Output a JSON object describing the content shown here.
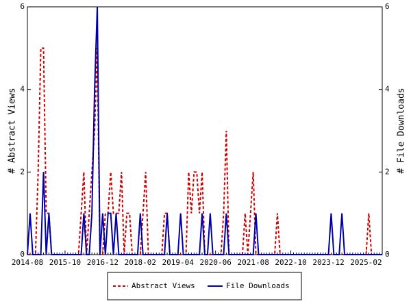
{
  "chart_data": {
    "type": "line",
    "categories": [
      "2014-08",
      null,
      null,
      null,
      null,
      null,
      null,
      null,
      null,
      null,
      null,
      null,
      null,
      null,
      "2015-10",
      null,
      null,
      null,
      null,
      null,
      null,
      null,
      null,
      null,
      null,
      null,
      null,
      null,
      "2016-12",
      null,
      null,
      null,
      null,
      null,
      null,
      null,
      null,
      null,
      null,
      null,
      null,
      null,
      "2018-02",
      null,
      null,
      null,
      null,
      null,
      null,
      null,
      null,
      null,
      null,
      null,
      null,
      null,
      "2019-04",
      null,
      null,
      null,
      null,
      null,
      null,
      null,
      null,
      null,
      null,
      null,
      null,
      null,
      "2020-06",
      null,
      null,
      null,
      null,
      null,
      null,
      null,
      null,
      null,
      null,
      null,
      null,
      null,
      "2021-08",
      null,
      null,
      null,
      null,
      null,
      null,
      null,
      null,
      null,
      null,
      null,
      null,
      null,
      "2022-10",
      null,
      null,
      null,
      null,
      null,
      null,
      null,
      null,
      null,
      null,
      null,
      null,
      null,
      "2023-12",
      null,
      null,
      null,
      null,
      null,
      null,
      null,
      null,
      null,
      null,
      null,
      null,
      null,
      "2025-02",
      null,
      null,
      null,
      null,
      null,
      null
    ],
    "series": [
      {
        "name": "Abstract Views",
        "color": "#cc0000",
        "dashed": true,
        "axis": "y",
        "values": [
          0,
          0,
          0,
          0,
          2,
          5,
          5,
          1,
          1,
          0,
          0,
          0,
          0,
          0,
          0,
          0,
          0,
          0,
          0,
          0,
          1,
          2,
          0,
          1,
          2,
          3,
          5,
          0,
          0,
          1,
          1,
          2,
          1,
          1,
          1,
          2,
          0,
          1,
          1,
          0,
          0,
          0,
          0,
          1,
          2,
          0,
          0,
          0,
          0,
          0,
          0,
          1,
          1,
          0,
          0,
          0,
          0,
          0,
          0,
          0,
          2,
          1,
          2,
          2,
          1,
          2,
          0,
          0,
          0,
          0,
          0,
          0,
          0,
          1,
          3,
          0,
          0,
          0,
          0,
          0,
          0,
          1,
          0,
          1,
          2,
          0,
          0,
          0,
          0,
          0,
          0,
          0,
          0,
          1,
          0,
          0,
          0,
          0,
          0,
          0,
          0,
          0,
          0,
          0,
          0,
          0,
          0,
          0,
          0,
          0,
          0,
          0,
          0,
          0,
          0,
          0,
          0,
          0,
          0,
          0,
          0,
          0,
          0,
          0,
          0,
          0,
          0,
          1,
          0,
          0,
          0,
          0,
          0
        ]
      },
      {
        "name": "File Downloads",
        "color": "#0000aa",
        "dashed": false,
        "axis": "y2",
        "values": [
          0,
          1,
          0,
          0,
          0,
          0,
          2,
          0,
          1,
          0,
          0,
          0,
          0,
          0,
          0,
          0,
          0,
          0,
          0,
          0,
          0,
          1,
          0,
          0,
          1,
          4,
          6,
          0,
          1,
          0,
          1,
          1,
          0,
          1,
          0,
          0,
          0,
          0,
          0,
          0,
          0,
          0,
          1,
          0,
          0,
          0,
          0,
          0,
          0,
          0,
          0,
          0,
          1,
          0,
          0,
          0,
          0,
          1,
          0,
          0,
          0,
          0,
          0,
          0,
          0,
          1,
          0,
          0,
          1,
          0,
          0,
          0,
          0,
          0,
          1,
          0,
          0,
          0,
          0,
          0,
          0,
          0,
          0,
          0,
          0,
          1,
          0,
          0,
          0,
          0,
          0,
          0,
          0,
          0,
          0,
          0,
          0,
          0,
          0,
          0,
          0,
          0,
          0,
          0,
          0,
          0,
          0,
          0,
          0,
          0,
          0,
          0,
          0,
          1,
          0,
          0,
          0,
          1,
          0,
          0,
          0,
          0,
          0,
          0,
          0,
          0,
          0,
          0,
          0,
          0,
          0,
          0,
          0
        ]
      }
    ],
    "ylabel": "# Abstract Views",
    "y2label": "# File Downloads",
    "ylim": [
      0,
      6
    ],
    "yticks": [
      0,
      2,
      4,
      6
    ],
    "y2lim": [
      0,
      6
    ],
    "y2ticks": [
      0,
      2,
      4,
      6
    ]
  }
}
